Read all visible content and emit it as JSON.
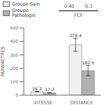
{
  "chart_data": {
    "type": "bar",
    "categories": [
      "VITESSE",
      "DISTANCE"
    ],
    "series": [
      {
        "name": "Groupe Sain",
        "color": "#f0f0f0",
        "values": [
          26.3,
          375.4
        ],
        "errors": [
          2.0,
          48.0
        ]
      },
      {
        "name": "Groupe\nPathologie",
        "color": "#b0b0b0",
        "values": [
          17.2,
          182.5
        ],
        "errors": [
          1.5,
          38.0
        ]
      }
    ],
    "ylabel": "PARAMETRES",
    "ylim": [
      0,
      500
    ],
    "yticks": [
      0,
      100,
      200,
      300,
      400,
      500
    ],
    "data_labels": true,
    "legend": "upper left",
    "annotations": [
      "0.40",
      "0.3",
      "FCF"
    ]
  }
}
